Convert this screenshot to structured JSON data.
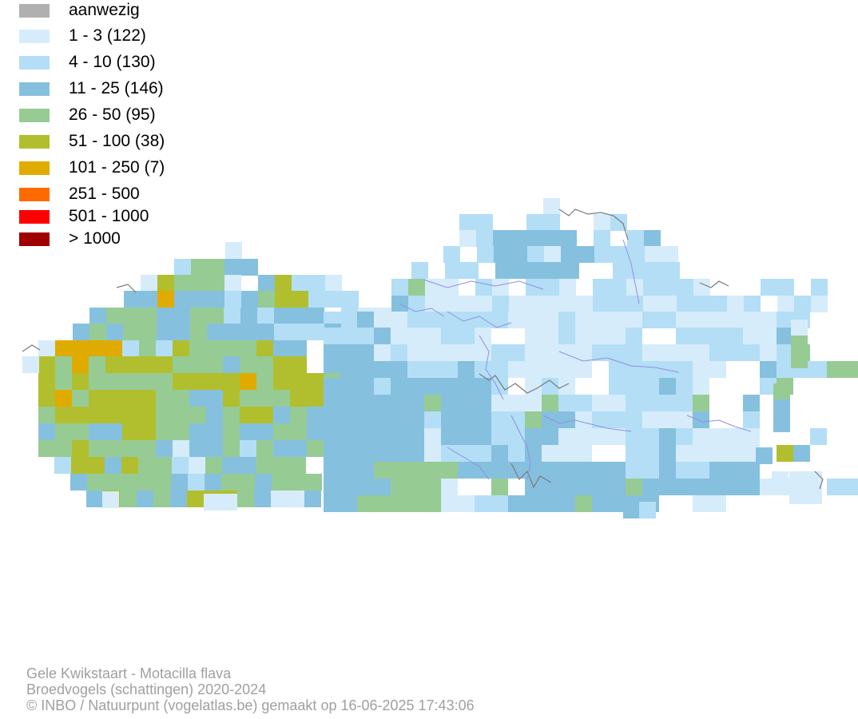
{
  "legend": {
    "items": [
      {
        "label": "aanwezig",
        "color": "#b0b0b0"
      },
      {
        "label": "1 - 3 (122)",
        "color": "#d6ecfa"
      },
      {
        "label": "4 - 10 (130)",
        "color": "#b3def6"
      },
      {
        "label": "11 - 25 (146)",
        "color": "#86c0df"
      },
      {
        "label": "26 - 50 (95)",
        "color": "#97cb94"
      },
      {
        "label": "51 - 100 (38)",
        "color": "#b1bf2e"
      },
      {
        "label": "101 - 250 (7)",
        "color": "#e0ab00"
      },
      {
        "label": "251 - 500",
        "color": "#ff6a00"
      },
      {
        "label": "501 - 1000",
        "color": "#ff0000"
      },
      {
        "label": "> 1000",
        "color": "#a00000"
      }
    ]
  },
  "credits": {
    "line1": "Gele Kwikstaart - Motacilla flava",
    "line2": "Broedvogels (schattingen) 2020-2024",
    "line3": "© INBO / Natuurpunt (vogelatlas.be) gemaakt op 16-06-2025 17:43:06"
  }
}
